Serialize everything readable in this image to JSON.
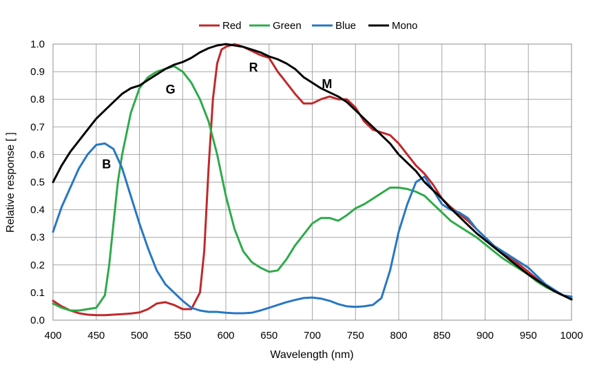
{
  "chart_data": {
    "type": "line",
    "title": "",
    "xlabel": "Wavelength (nm)",
    "ylabel": "Relative response [ ]",
    "xlim": [
      400,
      1000
    ],
    "ylim": [
      0,
      1.0
    ],
    "xticks": [
      400,
      450,
      500,
      550,
      600,
      650,
      700,
      750,
      800,
      850,
      900,
      950,
      1000
    ],
    "yticks": [
      0.0,
      0.1,
      0.2,
      0.3,
      0.4,
      0.5,
      0.6,
      0.7,
      0.8,
      0.9,
      1.0
    ],
    "xtick_labels": [
      "400",
      "450",
      "500",
      "550",
      "600",
      "650",
      "700",
      "750",
      "800",
      "850",
      "900",
      "950",
      "1000"
    ],
    "ytick_labels": [
      "0.0",
      "0.1",
      "0.2",
      "0.3",
      "0.4",
      "0.5",
      "0.6",
      "0.7",
      "0.8",
      "0.9",
      "1.0"
    ],
    "grid": true,
    "legend_position": "top-center",
    "series": [
      {
        "name": "Red",
        "color": "#c0282a",
        "x": [
          400,
          410,
          420,
          430,
          440,
          450,
          460,
          470,
          480,
          490,
          500,
          510,
          520,
          530,
          540,
          550,
          560,
          570,
          575,
          580,
          585,
          590,
          595,
          600,
          610,
          620,
          630,
          640,
          650,
          660,
          670,
          680,
          690,
          700,
          710,
          720,
          730,
          740,
          750,
          760,
          770,
          780,
          790,
          800,
          810,
          820,
          830,
          840,
          850,
          860,
          870,
          880,
          890,
          900,
          910,
          920,
          930,
          940,
          950,
          960,
          970,
          980,
          990,
          1000
        ],
        "y": [
          0.07,
          0.05,
          0.035,
          0.025,
          0.02,
          0.018,
          0.018,
          0.02,
          0.022,
          0.024,
          0.028,
          0.04,
          0.06,
          0.065,
          0.055,
          0.04,
          0.04,
          0.1,
          0.25,
          0.55,
          0.8,
          0.93,
          0.98,
          0.99,
          1.0,
          0.99,
          0.975,
          0.96,
          0.95,
          0.9,
          0.86,
          0.82,
          0.785,
          0.785,
          0.8,
          0.81,
          0.8,
          0.8,
          0.77,
          0.72,
          0.69,
          0.68,
          0.67,
          0.64,
          0.6,
          0.56,
          0.53,
          0.49,
          0.44,
          0.41,
          0.385,
          0.36,
          0.33,
          0.3,
          0.27,
          0.245,
          0.225,
          0.2,
          0.175,
          0.15,
          0.125,
          0.105,
          0.09,
          0.075
        ]
      },
      {
        "name": "Green",
        "color": "#2eaa4a",
        "x": [
          400,
          410,
          420,
          430,
          440,
          450,
          460,
          465,
          470,
          475,
          480,
          490,
          500,
          510,
          520,
          530,
          540,
          550,
          560,
          570,
          580,
          590,
          600,
          610,
          620,
          630,
          640,
          650,
          660,
          670,
          680,
          690,
          700,
          710,
          720,
          730,
          740,
          750,
          760,
          770,
          780,
          790,
          800,
          810,
          820,
          830,
          840,
          850,
          860,
          870,
          880,
          890,
          900,
          910,
          920,
          930,
          940,
          950,
          960,
          970,
          980,
          990,
          1000
        ],
        "y": [
          0.06,
          0.045,
          0.035,
          0.035,
          0.04,
          0.045,
          0.09,
          0.2,
          0.35,
          0.5,
          0.6,
          0.75,
          0.84,
          0.88,
          0.9,
          0.91,
          0.92,
          0.9,
          0.86,
          0.8,
          0.72,
          0.6,
          0.45,
          0.33,
          0.25,
          0.21,
          0.19,
          0.175,
          0.18,
          0.22,
          0.27,
          0.31,
          0.35,
          0.37,
          0.37,
          0.36,
          0.38,
          0.405,
          0.42,
          0.44,
          0.46,
          0.48,
          0.48,
          0.475,
          0.465,
          0.45,
          0.42,
          0.39,
          0.36,
          0.34,
          0.32,
          0.3,
          0.275,
          0.25,
          0.225,
          0.205,
          0.185,
          0.165,
          0.14,
          0.12,
          0.105,
          0.09,
          0.08
        ]
      },
      {
        "name": "Blue",
        "color": "#2677c4",
        "x": [
          400,
          410,
          420,
          430,
          440,
          450,
          460,
          470,
          480,
          490,
          500,
          510,
          520,
          530,
          540,
          550,
          560,
          570,
          580,
          590,
          600,
          610,
          620,
          630,
          640,
          650,
          660,
          670,
          680,
          690,
          700,
          710,
          720,
          730,
          740,
          750,
          760,
          770,
          780,
          790,
          800,
          810,
          820,
          830,
          840,
          850,
          860,
          870,
          880,
          890,
          900,
          910,
          920,
          930,
          940,
          950,
          960,
          970,
          980,
          990,
          1000
        ],
        "y": [
          0.32,
          0.41,
          0.48,
          0.55,
          0.6,
          0.635,
          0.64,
          0.62,
          0.55,
          0.45,
          0.35,
          0.26,
          0.18,
          0.13,
          0.1,
          0.07,
          0.045,
          0.035,
          0.03,
          0.03,
          0.027,
          0.025,
          0.025,
          0.027,
          0.035,
          0.045,
          0.055,
          0.065,
          0.073,
          0.08,
          0.082,
          0.078,
          0.07,
          0.058,
          0.05,
          0.048,
          0.05,
          0.055,
          0.08,
          0.18,
          0.32,
          0.42,
          0.5,
          0.52,
          0.47,
          0.42,
          0.4,
          0.39,
          0.37,
          0.33,
          0.3,
          0.27,
          0.25,
          0.23,
          0.21,
          0.19,
          0.16,
          0.13,
          0.11,
          0.09,
          0.085
        ]
      },
      {
        "name": "Mono",
        "color": "#000000",
        "x": [
          400,
          410,
          420,
          430,
          440,
          450,
          460,
          470,
          480,
          490,
          500,
          510,
          520,
          530,
          540,
          550,
          560,
          570,
          580,
          590,
          600,
          610,
          620,
          630,
          640,
          650,
          660,
          670,
          680,
          690,
          700,
          710,
          720,
          730,
          740,
          750,
          760,
          770,
          780,
          790,
          800,
          810,
          820,
          830,
          840,
          850,
          860,
          870,
          880,
          890,
          900,
          910,
          920,
          930,
          940,
          950,
          960,
          970,
          980,
          990,
          1000
        ],
        "y": [
          0.5,
          0.56,
          0.61,
          0.65,
          0.69,
          0.73,
          0.76,
          0.79,
          0.82,
          0.84,
          0.85,
          0.87,
          0.89,
          0.91,
          0.925,
          0.935,
          0.95,
          0.97,
          0.985,
          0.995,
          1.0,
          0.995,
          0.99,
          0.98,
          0.97,
          0.955,
          0.945,
          0.93,
          0.91,
          0.88,
          0.86,
          0.84,
          0.825,
          0.81,
          0.79,
          0.76,
          0.73,
          0.7,
          0.67,
          0.64,
          0.6,
          0.57,
          0.54,
          0.5,
          0.47,
          0.44,
          0.405,
          0.375,
          0.345,
          0.315,
          0.29,
          0.265,
          0.24,
          0.215,
          0.19,
          0.165,
          0.145,
          0.125,
          0.105,
          0.09,
          0.075
        ]
      }
    ],
    "annotations": [
      {
        "text": "B",
        "x": 462,
        "y": 0.55
      },
      {
        "text": "G",
        "x": 536,
        "y": 0.82
      },
      {
        "text": "R",
        "x": 632,
        "y": 0.9
      },
      {
        "text": "M",
        "x": 717,
        "y": 0.84
      }
    ]
  }
}
